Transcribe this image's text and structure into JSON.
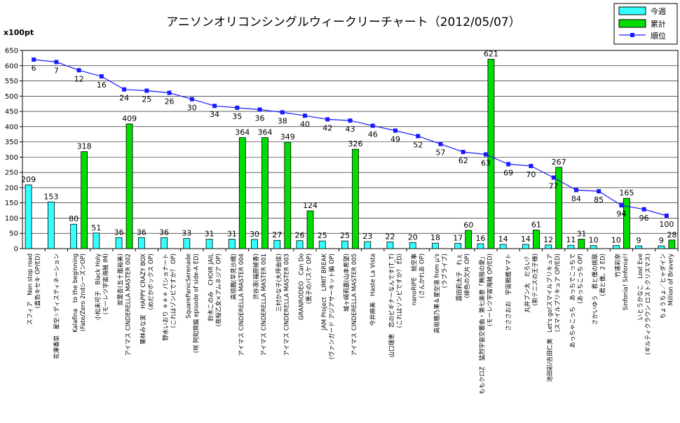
{
  "chart_data": {
    "type": "bar",
    "title": "アニソンオリコンシングルウィークリーチャート（2012/05/07）",
    "unit_label": "x100pt",
    "ylim": [
      0,
      650
    ],
    "yticks": [
      0,
      50,
      100,
      150,
      200,
      250,
      300,
      350,
      400,
      450,
      500,
      550,
      600,
      650
    ],
    "legend_position": "top-right",
    "grid": true,
    "colors": {
      "weekly": "#33ffff",
      "total": "#00dd00",
      "rank": "#1a1aff"
    },
    "categories": [
      [
        "スフィア　Non stop road",
        "(直色キセキ OP/ED)"
      ],
      [
        "花澤香菜　星空☆ディスティネーション",
        ""
      ],
      [
        "Kalafina　to the beginning",
        "(Fate/Zero 2ndシーズンOP)"
      ],
      [
        "小松未可子　Black Holy",
        "(モーレツ宇宙海賊 IM)"
      ],
      [
        "双葉杏(五十嵐裕美)",
        "アイマス CINDERELLA MASTER 002"
      ],
      [
        "栗林みな実　HAPPY CRAZY BOX",
        "(めだかボックス OP)"
      ],
      [
        "野水いおり ＊＊＊ パショナート",
        "(これはゾンビですか？ OP)"
      ],
      [
        "SquarePanicSerenade",
        "(咲 阿知賀編 episode of side-A ED)"
      ],
      [
        "鈴木このみ　CHOIR JAIL",
        "(夜桜乙女×アムネジア OP)"
      ],
      [
        "高垣楓(早見沙織)",
        "アイマス CINDERELLA MASTER 004"
      ],
      [
        "渋谷凛(福原綾香)",
        "アイマス CINDERELLA MASTER 001"
      ],
      [
        "三村かな子(大坪由佳)",
        "アイマス CINDERELLA MASTER 003"
      ],
      [
        "GRANRODEO　Can Do",
        "(黒子のバスケ OP)"
      ],
      [
        "JAM Project　LIMIT BREAK",
        "(ヴァンガード アジアサーキット編 OP)"
      ],
      [
        "城ヶ崎莉嘉(山本希望)",
        "アイマス CINDERELLA MASTER 005"
      ],
      [
        "今井麻美　Haste La Vista",
        ""
      ],
      [
        "山口理恵　恋のビギナーなんです(T_T)",
        "(これはゾンビですか？ ED)"
      ],
      [
        "nanoRIPE　絵空事",
        "(さんかれあ OP)"
      ],
      [
        "高坂穂乃果＆星空凛 from μ's",
        "(ラブライブ)"
      ],
      [
        "霧田莉太子　れぇ",
        "(緋色の欠片 OP)"
      ],
      [
        "ももクロZ　猛烈宇宙交響曲・第七楽章「無限の愛」",
        "(モーレツ宇宙海賊 OP/ED)"
      ],
      [
        "さささおお　宇宙戦艦ヤマト",
        ""
      ],
      [
        "丸井ブン太　だろい？",
        "(新テニスの王子様)"
      ],
      [
        "池田彩/吉田仁美　Let's go!スマイルプリキュア",
        "(スマイルプリキュア OP/ED)"
      ],
      [
        "あっちゃこっち　あっちでこっちで",
        "(あっちこっち OP)"
      ],
      [
        "さかいゆう　君と僕の挑歌",
        "(君と僕。2 ED)"
      ],
      [
        "竹達彩奈",
        "Sinfonia! Sinfonia!!"
      ],
      [
        "いとうかなこ　Lost Eve",
        "(ギルティクラウン ロストクリスマス)"
      ],
      [
        "ちょうちょ／ヒャダイン",
        "Million of Bravery"
      ]
    ],
    "series": [
      {
        "name": "今週",
        "type": "bar",
        "values": [
          209,
          153,
          80,
          51,
          36,
          36,
          36,
          33,
          31,
          31,
          30,
          27,
          26,
          25,
          25,
          23,
          22,
          20,
          18,
          17,
          16,
          14,
          14,
          12,
          11,
          10,
          10,
          9,
          9
        ]
      },
      {
        "name": "累計",
        "type": "bar",
        "values": [
          null,
          null,
          318,
          null,
          409,
          null,
          null,
          null,
          null,
          364,
          364,
          349,
          124,
          null,
          326,
          null,
          null,
          null,
          null,
          60,
          621,
          null,
          61,
          267,
          31,
          null,
          165,
          null,
          28
        ]
      },
      {
        "name": "順位",
        "type": "line",
        "values": [
          6,
          7,
          12,
          16,
          24,
          25,
          26,
          30,
          34,
          35,
          36,
          38,
          40,
          42,
          43,
          46,
          49,
          52,
          57,
          62,
          63,
          69,
          70,
          77,
          84,
          85,
          94,
          96,
          100
        ],
        "positions": [
          620,
          612,
          585,
          565,
          522,
          518,
          511,
          490,
          468,
          462,
          456,
          447,
          436,
          424,
          420,
          403,
          387,
          369,
          343,
          317,
          309,
          277,
          271,
          233,
          192,
          188,
          142,
          129,
          108
        ]
      }
    ]
  }
}
